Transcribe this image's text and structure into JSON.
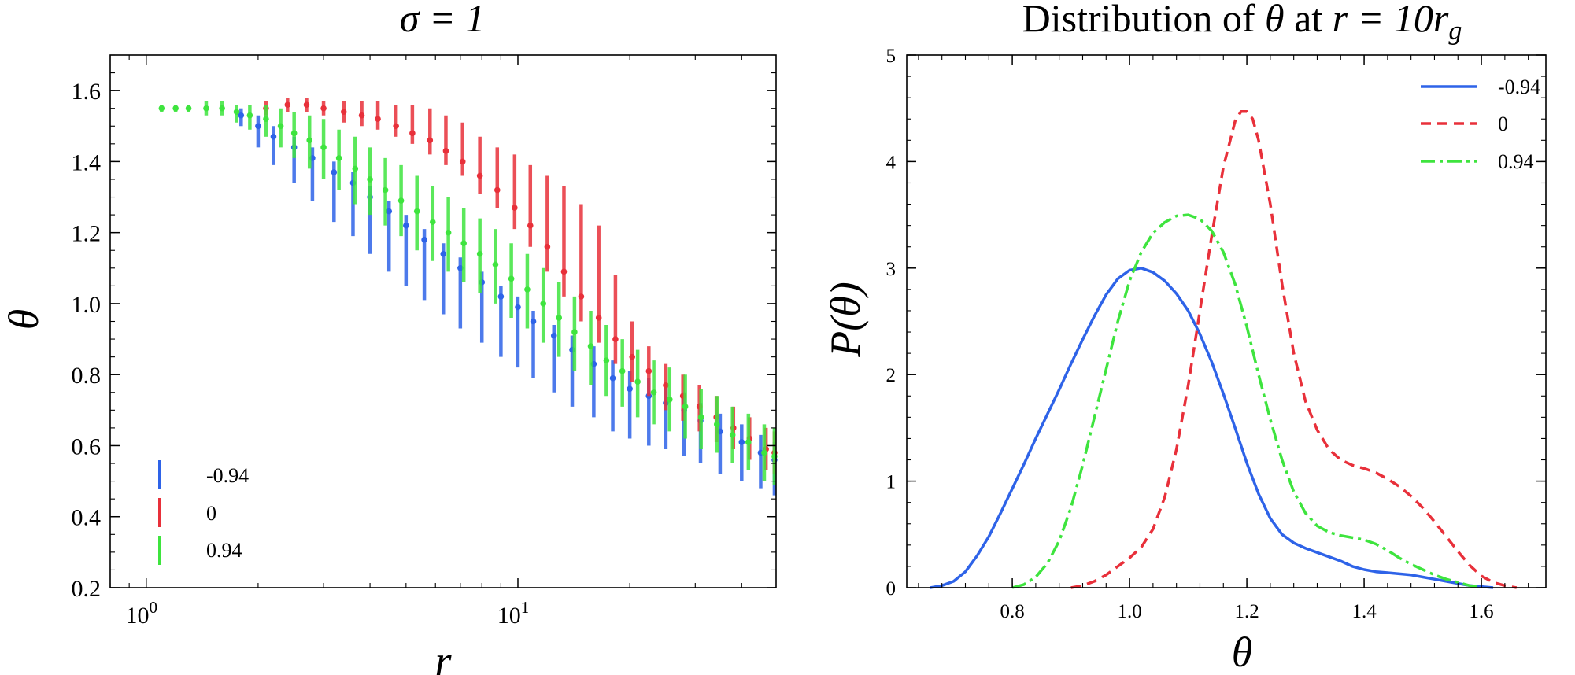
{
  "chart_data": [
    {
      "type": "scatter",
      "title": "σ = 1",
      "xlabel": "r",
      "ylabel": "θ",
      "xscale": "log",
      "xlim": [
        0.8,
        49.5
      ],
      "ylim": [
        0.2,
        1.7
      ],
      "xtick_labels": [
        {
          "value": 1,
          "base": "10",
          "exp": "0"
        },
        {
          "value": 10,
          "base": "10",
          "exp": "1"
        }
      ],
      "yticks": [
        0.2,
        0.4,
        0.6,
        0.8,
        1.0,
        1.2,
        1.4,
        1.6
      ],
      "ytick_labels": [
        "0.2",
        "0.4",
        "0.6",
        "0.8",
        "1.0",
        "1.2",
        "1.4",
        "1.6"
      ],
      "legend_position": "lower-left",
      "series": [
        {
          "name": "-0.94",
          "color": "#2e63e8",
          "x": [
            1.8,
            2.0,
            2.2,
            2.5,
            2.8,
            3.2,
            3.6,
            4.0,
            4.5,
            5.0,
            5.6,
            6.3,
            7.0,
            8.0,
            9.0,
            10.0,
            11.0,
            12.5,
            14.0,
            16.0,
            18.0,
            20.0,
            22.5,
            25.0,
            28.0,
            31.0,
            35.0,
            40.0,
            45.0,
            49.0
          ],
          "y": [
            1.53,
            1.5,
            1.47,
            1.44,
            1.41,
            1.37,
            1.34,
            1.3,
            1.26,
            1.22,
            1.18,
            1.14,
            1.1,
            1.06,
            1.02,
            0.99,
            0.95,
            0.91,
            0.87,
            0.83,
            0.79,
            0.76,
            0.74,
            0.72,
            0.7,
            0.67,
            0.64,
            0.61,
            0.58,
            0.56
          ],
          "err_lo": [
            0.03,
            0.06,
            0.08,
            0.1,
            0.12,
            0.14,
            0.15,
            0.16,
            0.17,
            0.17,
            0.17,
            0.17,
            0.17,
            0.17,
            0.17,
            0.17,
            0.16,
            0.16,
            0.16,
            0.15,
            0.15,
            0.14,
            0.14,
            0.13,
            0.13,
            0.12,
            0.12,
            0.11,
            0.1,
            0.1
          ],
          "err_hi": [
            0.02,
            0.03,
            0.03,
            0.03,
            0.03,
            0.03,
            0.03,
            0.03,
            0.03,
            0.03,
            0.03,
            0.03,
            0.03,
            0.03,
            0.03,
            0.03,
            0.03,
            0.03,
            0.04,
            0.05,
            0.05,
            0.05,
            0.05,
            0.05,
            0.05,
            0.05,
            0.05,
            0.05,
            0.05,
            0.05
          ]
        },
        {
          "name": "0",
          "color": "#e8303a",
          "x": [
            2.1,
            2.4,
            2.7,
            3.0,
            3.4,
            3.8,
            4.2,
            4.7,
            5.2,
            5.8,
            6.4,
            7.1,
            7.9,
            8.8,
            9.8,
            10.8,
            12.0,
            13.3,
            14.8,
            16.5,
            18.3,
            20.3,
            22.5,
            25.0,
            27.8,
            30.8,
            34.2,
            38.0,
            42.0,
            46.5,
            49.0
          ],
          "y": [
            1.55,
            1.56,
            1.56,
            1.55,
            1.54,
            1.53,
            1.52,
            1.5,
            1.48,
            1.46,
            1.43,
            1.4,
            1.36,
            1.32,
            1.27,
            1.22,
            1.16,
            1.09,
            1.02,
            0.96,
            0.9,
            0.85,
            0.81,
            0.77,
            0.74,
            0.71,
            0.68,
            0.65,
            0.62,
            0.59,
            0.58
          ],
          "err_lo": [
            0.02,
            0.02,
            0.02,
            0.02,
            0.03,
            0.03,
            0.03,
            0.03,
            0.03,
            0.04,
            0.04,
            0.04,
            0.05,
            0.05,
            0.06,
            0.06,
            0.07,
            0.07,
            0.07,
            0.07,
            0.07,
            0.07,
            0.07,
            0.07,
            0.07,
            0.07,
            0.07,
            0.06,
            0.06,
            0.06,
            0.06
          ],
          "err_hi": [
            0.02,
            0.02,
            0.02,
            0.02,
            0.03,
            0.04,
            0.05,
            0.06,
            0.08,
            0.09,
            0.1,
            0.11,
            0.11,
            0.12,
            0.15,
            0.17,
            0.2,
            0.24,
            0.26,
            0.26,
            0.18,
            0.1,
            0.07,
            0.06,
            0.06,
            0.06,
            0.06,
            0.06,
            0.06,
            0.06,
            0.06
          ]
        },
        {
          "name": "0.94",
          "color": "#3ee43e",
          "x": [
            1.1,
            1.2,
            1.3,
            1.45,
            1.6,
            1.75,
            1.9,
            2.1,
            2.3,
            2.5,
            2.75,
            3.0,
            3.3,
            3.65,
            4.0,
            4.4,
            4.85,
            5.35,
            5.9,
            6.5,
            7.15,
            7.9,
            8.7,
            9.6,
            10.6,
            11.7,
            12.9,
            14.2,
            15.7,
            17.3,
            19.1,
            21.0,
            23.2,
            25.6,
            28.2,
            31.1,
            34.3,
            37.8,
            41.7,
            46.0,
            49.0
          ],
          "y": [
            1.55,
            1.55,
            1.55,
            1.55,
            1.55,
            1.54,
            1.53,
            1.52,
            1.5,
            1.48,
            1.46,
            1.44,
            1.41,
            1.38,
            1.35,
            1.32,
            1.29,
            1.26,
            1.23,
            1.2,
            1.17,
            1.14,
            1.11,
            1.07,
            1.04,
            1.0,
            0.96,
            0.92,
            0.88,
            0.84,
            0.81,
            0.78,
            0.75,
            0.73,
            0.71,
            0.68,
            0.66,
            0.63,
            0.61,
            0.58,
            0.57
          ],
          "err_lo": [
            0.01,
            0.01,
            0.01,
            0.02,
            0.02,
            0.03,
            0.04,
            0.05,
            0.06,
            0.07,
            0.08,
            0.09,
            0.09,
            0.1,
            0.1,
            0.1,
            0.1,
            0.11,
            0.11,
            0.11,
            0.11,
            0.11,
            0.11,
            0.11,
            0.11,
            0.11,
            0.11,
            0.11,
            0.11,
            0.1,
            0.1,
            0.1,
            0.09,
            0.09,
            0.09,
            0.09,
            0.08,
            0.08,
            0.08,
            0.08,
            0.08
          ],
          "err_hi": [
            0.01,
            0.01,
            0.01,
            0.02,
            0.02,
            0.02,
            0.03,
            0.04,
            0.05,
            0.06,
            0.07,
            0.08,
            0.08,
            0.09,
            0.09,
            0.09,
            0.1,
            0.1,
            0.1,
            0.1,
            0.1,
            0.1,
            0.1,
            0.1,
            0.1,
            0.1,
            0.1,
            0.1,
            0.1,
            0.1,
            0.09,
            0.09,
            0.09,
            0.09,
            0.09,
            0.08,
            0.08,
            0.08,
            0.08,
            0.08,
            0.08
          ]
        }
      ]
    },
    {
      "type": "line",
      "title": "Distribution of θ at r = 10r_g",
      "title_parts": {
        "pre": "Distribution of ",
        "theta": "θ",
        "mid": " at ",
        "eq": "r = 10r",
        "sub": "g"
      },
      "xlabel": "θ",
      "ylabel": "P(θ)",
      "xlim": [
        0.62,
        1.71
      ],
      "ylim": [
        0,
        5
      ],
      "xticks": [
        0.8,
        1.0,
        1.2,
        1.4,
        1.6
      ],
      "xtick_labels": [
        "0.8",
        "1.0",
        "1.2",
        "1.4",
        "1.6"
      ],
      "yticks": [
        0,
        1,
        2,
        3,
        4,
        5
      ],
      "ytick_labels": [
        "0",
        "1",
        "2",
        "3",
        "4",
        "5"
      ],
      "legend_position": "top-right",
      "series": [
        {
          "name": "-0.94",
          "color": "#2e63e8",
          "dash": "solid",
          "x": [
            0.66,
            0.68,
            0.7,
            0.72,
            0.74,
            0.76,
            0.78,
            0.8,
            0.82,
            0.84,
            0.86,
            0.88,
            0.9,
            0.92,
            0.94,
            0.96,
            0.98,
            1.0,
            1.02,
            1.04,
            1.06,
            1.08,
            1.1,
            1.12,
            1.14,
            1.16,
            1.18,
            1.2,
            1.22,
            1.24,
            1.26,
            1.28,
            1.3,
            1.32,
            1.34,
            1.36,
            1.38,
            1.4,
            1.42,
            1.44,
            1.46,
            1.48,
            1.5,
            1.52,
            1.54,
            1.56,
            1.58,
            1.6,
            1.62
          ],
          "y": [
            0.0,
            0.02,
            0.06,
            0.15,
            0.3,
            0.48,
            0.7,
            0.93,
            1.16,
            1.4,
            1.63,
            1.86,
            2.1,
            2.33,
            2.55,
            2.75,
            2.9,
            2.98,
            3.0,
            2.96,
            2.88,
            2.76,
            2.6,
            2.38,
            2.12,
            1.82,
            1.5,
            1.17,
            0.88,
            0.65,
            0.5,
            0.42,
            0.37,
            0.33,
            0.29,
            0.25,
            0.2,
            0.17,
            0.15,
            0.14,
            0.13,
            0.12,
            0.1,
            0.08,
            0.06,
            0.04,
            0.02,
            0.01,
            0.0
          ]
        },
        {
          "name": "0",
          "color": "#e8303a",
          "dash": "dashed",
          "x": [
            0.9,
            0.92,
            0.94,
            0.96,
            0.98,
            1.0,
            1.02,
            1.04,
            1.06,
            1.08,
            1.1,
            1.12,
            1.14,
            1.16,
            1.18,
            1.19,
            1.2,
            1.21,
            1.22,
            1.24,
            1.26,
            1.28,
            1.3,
            1.32,
            1.34,
            1.36,
            1.38,
            1.4,
            1.42,
            1.44,
            1.46,
            1.48,
            1.5,
            1.52,
            1.54,
            1.56,
            1.58,
            1.6,
            1.62,
            1.64,
            1.66
          ],
          "y": [
            0.0,
            0.02,
            0.06,
            0.12,
            0.2,
            0.28,
            0.38,
            0.55,
            0.85,
            1.3,
            1.9,
            2.6,
            3.3,
            3.95,
            4.38,
            4.47,
            4.47,
            4.4,
            4.2,
            3.6,
            2.85,
            2.2,
            1.75,
            1.48,
            1.3,
            1.2,
            1.15,
            1.12,
            1.08,
            1.02,
            0.95,
            0.86,
            0.75,
            0.62,
            0.48,
            0.34,
            0.21,
            0.11,
            0.05,
            0.02,
            0.0
          ]
        },
        {
          "name": "0.94",
          "color": "#3ee43e",
          "dash": "dashdot",
          "x": [
            0.8,
            0.82,
            0.84,
            0.86,
            0.88,
            0.9,
            0.92,
            0.94,
            0.96,
            0.98,
            1.0,
            1.02,
            1.04,
            1.06,
            1.08,
            1.1,
            1.12,
            1.14,
            1.16,
            1.18,
            1.2,
            1.22,
            1.24,
            1.26,
            1.28,
            1.3,
            1.32,
            1.34,
            1.36,
            1.38,
            1.4,
            1.42,
            1.44,
            1.46,
            1.48,
            1.5,
            1.52,
            1.54,
            1.56,
            1.58,
            1.6
          ],
          "y": [
            0.0,
            0.03,
            0.1,
            0.23,
            0.44,
            0.75,
            1.15,
            1.6,
            2.05,
            2.5,
            2.88,
            3.15,
            3.33,
            3.43,
            3.49,
            3.5,
            3.46,
            3.35,
            3.15,
            2.85,
            2.45,
            2.0,
            1.58,
            1.2,
            0.9,
            0.7,
            0.58,
            0.52,
            0.49,
            0.47,
            0.45,
            0.41,
            0.35,
            0.28,
            0.22,
            0.17,
            0.12,
            0.08,
            0.05,
            0.02,
            0.0
          ]
        }
      ]
    }
  ]
}
